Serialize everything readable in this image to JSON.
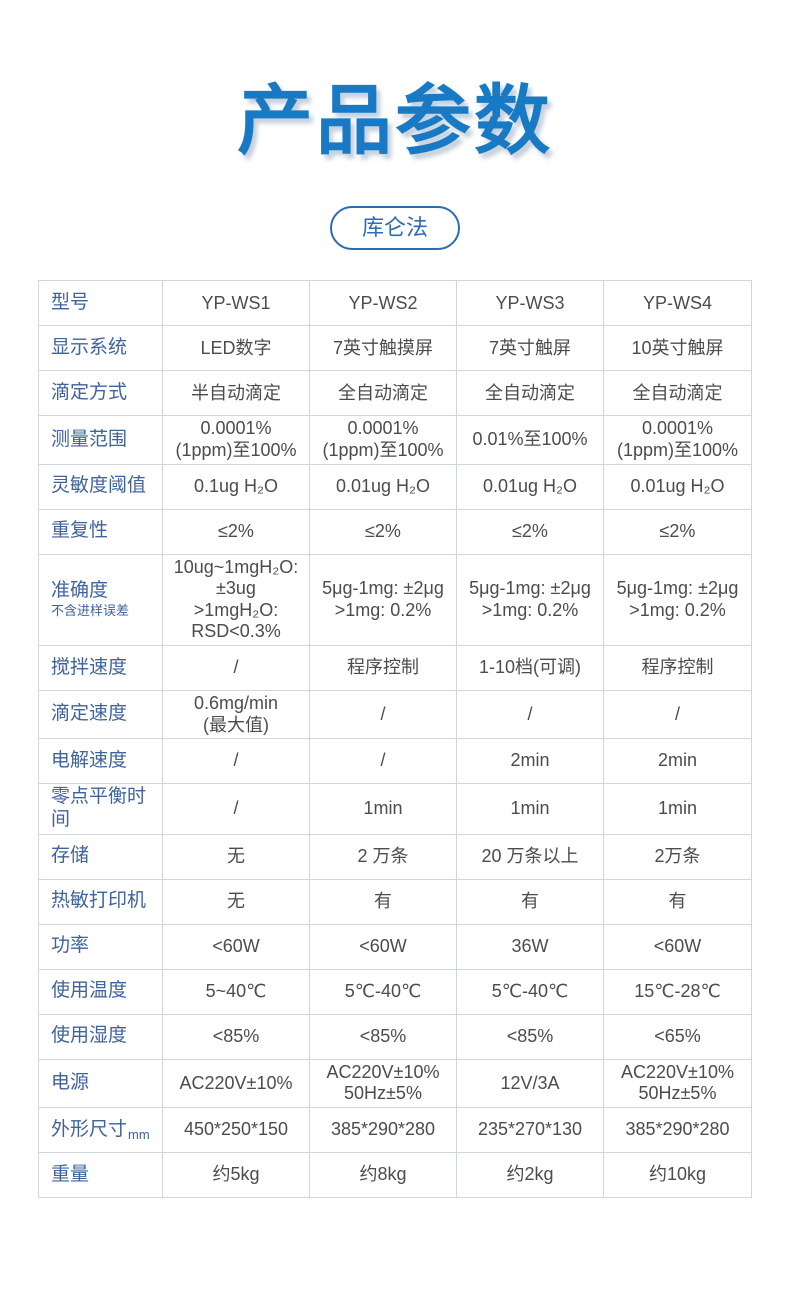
{
  "page": {
    "title": "产品参数",
    "badge": "库仑法"
  },
  "colors": {
    "title_blue": "#187ac4",
    "badge_blue": "#2b6cb4",
    "label_blue": "#3f639b",
    "value_gray": "#4c4c4c",
    "border": "#cfd6dd"
  },
  "table": {
    "corner_label": "型号",
    "models": [
      "YP-WS1",
      "YP-WS2",
      "YP-WS3",
      "YP-WS4"
    ],
    "rows": [
      {
        "label": "显示系统",
        "values": [
          "LED数字",
          "7英寸触摸屏",
          "7英寸触屏",
          "10英寸触屏"
        ]
      },
      {
        "label": "滴定方式",
        "values": [
          "半自动滴定",
          "全自动滴定",
          "全自动滴定",
          "全自动滴定"
        ]
      },
      {
        "label": "测量范围",
        "values": [
          "0.0001%\n(1ppm)至100%",
          "0.0001%\n(1ppm)至100%",
          "0.01%至100%",
          "0.0001%\n(1ppm)至100%"
        ]
      },
      {
        "label": "灵敏度阈值",
        "values": [
          "0.1ug H₂O",
          "0.01ug H₂O",
          "0.01ug H₂O",
          "0.01ug H₂O"
        ]
      },
      {
        "label": "重复性",
        "values": [
          "≤2%",
          "≤2%",
          "≤2%",
          "≤2%"
        ]
      },
      {
        "label": "准确度",
        "label_sub": "不含进样误差",
        "values": [
          "10ug~1mgH₂O:\n±3ug\n>1mgH₂O:\nRSD<0.3%",
          "5μg-1mg: ±2μg\n>1mg: 0.2%",
          "5μg-1mg: ±2μg\n>1mg: 0.2%",
          "5μg-1mg: ±2μg\n>1mg: 0.2%"
        ]
      },
      {
        "label": "搅拌速度",
        "values": [
          "/",
          "程序控制",
          "1-10档(可调)",
          "程序控制"
        ]
      },
      {
        "label": "滴定速度",
        "values": [
          "0.6mg/min\n(最大值)",
          "/",
          "/",
          "/"
        ]
      },
      {
        "label": "电解速度",
        "values": [
          "/",
          "/",
          "2min",
          "2min"
        ]
      },
      {
        "label": "零点平衡时间",
        "values": [
          "/",
          "1min",
          "1min",
          "1min"
        ]
      },
      {
        "label": "存储",
        "values": [
          "无",
          "2 万条",
          "20 万条以上",
          "2万条"
        ]
      },
      {
        "label": "热敏打印机",
        "values": [
          "无",
          "有",
          "有",
          "有"
        ]
      },
      {
        "label": "功率",
        "values": [
          "<60W",
          "<60W",
          "36W",
          "<60W"
        ]
      },
      {
        "label": "使用温度",
        "values": [
          "5~40℃",
          "5℃-40℃",
          "5℃-40℃",
          "15℃-28℃"
        ]
      },
      {
        "label": "使用湿度",
        "values": [
          "<85%",
          "<85%",
          "<85%",
          "<65%"
        ]
      },
      {
        "label": "电源",
        "values": [
          "AC220V±10%",
          "AC220V±10%\n50Hz±5%",
          "12V/3A",
          "AC220V±10%\n50Hz±5%"
        ]
      },
      {
        "label": "外形尺寸",
        "label_suffix": "mm",
        "values": [
          "450*250*150",
          "385*290*280",
          "235*270*130",
          "385*290*280"
        ]
      },
      {
        "label": "重量",
        "values": [
          "约5kg",
          "约8kg",
          "约2kg",
          "约10kg"
        ]
      }
    ]
  }
}
